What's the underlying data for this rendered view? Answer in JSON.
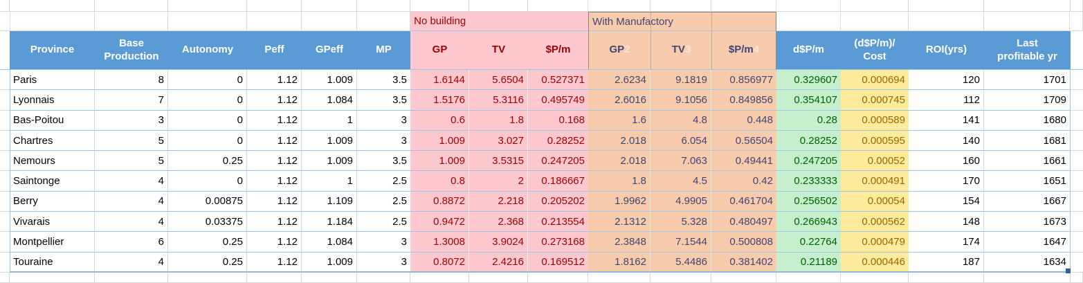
{
  "bands": {
    "no_building": "No building",
    "with_manufactory": "With Manufactory"
  },
  "header": {
    "province": "Province",
    "base_production": "Base\nProduction",
    "autonomy": "Autonomy",
    "peff": "Peff",
    "gpeff": "GPeff",
    "mp": "MP",
    "nb_gp": "GP",
    "nb_tv": "TV",
    "nb_ppm": "$P/m",
    "wm_gp": "GP",
    "wm_gp_ghost": "2",
    "wm_tv": "TV",
    "wm_tv_ghost": "3",
    "wm_ppm": "$P/m",
    "wm_ppm_ghost": "4",
    "dppm": "d$P/m",
    "dppm_cost": "(d$P/m)/\nCost",
    "roi": "ROI(yrs)",
    "last_yr": "Last\nprofitable yr"
  },
  "table": {
    "rows": [
      {
        "province": "Paris",
        "base_production": "8",
        "autonomy": "0",
        "peff": "1.12",
        "gpeff": "1.009",
        "mp": "3.5",
        "nb_gp": "1.6144",
        "nb_tv": "5.6504",
        "nb_ppm": "0.527371",
        "wm_gp": "2.6234",
        "wm_tv": "9.1819",
        "wm_ppm": "0.856977",
        "dppm": "0.329607",
        "dppm_cost": "0.000694",
        "roi": "120",
        "last_yr": "1701"
      },
      {
        "province": "Lyonnais",
        "base_production": "7",
        "autonomy": "0",
        "peff": "1.12",
        "gpeff": "1.084",
        "mp": "3.5",
        "nb_gp": "1.5176",
        "nb_tv": "5.3116",
        "nb_ppm": "0.495749",
        "wm_gp": "2.6016",
        "wm_tv": "9.1056",
        "wm_ppm": "0.849856",
        "dppm": "0.354107",
        "dppm_cost": "0.000745",
        "roi": "112",
        "last_yr": "1709"
      },
      {
        "province": "Bas-Poitou",
        "base_production": "3",
        "autonomy": "0",
        "peff": "1.12",
        "gpeff": "1",
        "mp": "3",
        "nb_gp": "0.6",
        "nb_tv": "1.8",
        "nb_ppm": "0.168",
        "wm_gp": "1.6",
        "wm_tv": "4.8",
        "wm_ppm": "0.448",
        "dppm": "0.28",
        "dppm_cost": "0.000589",
        "roi": "141",
        "last_yr": "1680"
      },
      {
        "province": "Chartres",
        "base_production": "5",
        "autonomy": "0",
        "peff": "1.12",
        "gpeff": "1.009",
        "mp": "3",
        "nb_gp": "1.009",
        "nb_tv": "3.027",
        "nb_ppm": "0.28252",
        "wm_gp": "2.018",
        "wm_tv": "6.054",
        "wm_ppm": "0.56504",
        "dppm": "0.28252",
        "dppm_cost": "0.000595",
        "roi": "140",
        "last_yr": "1681"
      },
      {
        "province": "Nemours",
        "base_production": "5",
        "autonomy": "0.25",
        "peff": "1.12",
        "gpeff": "1.009",
        "mp": "3.5",
        "nb_gp": "1.009",
        "nb_tv": "3.5315",
        "nb_ppm": "0.247205",
        "wm_gp": "2.018",
        "wm_tv": "7.063",
        "wm_ppm": "0.49441",
        "dppm": "0.247205",
        "dppm_cost": "0.00052",
        "roi": "160",
        "last_yr": "1661"
      },
      {
        "province": "Saintonge",
        "base_production": "4",
        "autonomy": "0",
        "peff": "1.12",
        "gpeff": "1",
        "mp": "2.5",
        "nb_gp": "0.8",
        "nb_tv": "2",
        "nb_ppm": "0.186667",
        "wm_gp": "1.8",
        "wm_tv": "4.5",
        "wm_ppm": "0.42",
        "dppm": "0.233333",
        "dppm_cost": "0.000491",
        "roi": "170",
        "last_yr": "1651"
      },
      {
        "province": "Berry",
        "base_production": "4",
        "autonomy": "0.00875",
        "peff": "1.12",
        "gpeff": "1.109",
        "mp": "2.5",
        "nb_gp": "0.8872",
        "nb_tv": "2.218",
        "nb_ppm": "0.205202",
        "wm_gp": "1.9962",
        "wm_tv": "4.9905",
        "wm_ppm": "0.461704",
        "dppm": "0.256502",
        "dppm_cost": "0.00054",
        "roi": "154",
        "last_yr": "1667"
      },
      {
        "province": "Vivarais",
        "base_production": "4",
        "autonomy": "0.03375",
        "peff": "1.12",
        "gpeff": "1.184",
        "mp": "2.5",
        "nb_gp": "0.9472",
        "nb_tv": "2.368",
        "nb_ppm": "0.213554",
        "wm_gp": "2.1312",
        "wm_tv": "5.328",
        "wm_ppm": "0.480497",
        "dppm": "0.266943",
        "dppm_cost": "0.000562",
        "roi": "148",
        "last_yr": "1673"
      },
      {
        "province": "Montpellier",
        "base_production": "6",
        "autonomy": "0.25",
        "peff": "1.12",
        "gpeff": "1.084",
        "mp": "3",
        "nb_gp": "1.3008",
        "nb_tv": "3.9024",
        "nb_ppm": "0.273168",
        "wm_gp": "2.3848",
        "wm_tv": "7.1544",
        "wm_ppm": "0.500808",
        "dppm": "0.22764",
        "dppm_cost": "0.000479",
        "roi": "174",
        "last_yr": "1647"
      },
      {
        "province": "Touraine",
        "base_production": "4",
        "autonomy": "0.25",
        "peff": "1.12",
        "gpeff": "1.009",
        "mp": "3",
        "nb_gp": "0.8072",
        "nb_tv": "2.4216",
        "nb_ppm": "0.169512",
        "wm_gp": "1.8162",
        "wm_tv": "5.4486",
        "wm_ppm": "0.381402",
        "dppm": "0.21189",
        "dppm_cost": "0.000446",
        "roi": "187",
        "last_yr": "1634"
      }
    ]
  },
  "colors": {
    "header_blue": "#5B9BD5",
    "header_text": "#FFFFFF",
    "bad_fill": "#FFC7CE",
    "bad_text": "#9C0006",
    "manufactory_fill": "#F8CBAD",
    "manufactory_text": "#3F4575",
    "good_fill": "#C6EFCE",
    "good_text": "#006100",
    "neutral_fill": "#FFEB9C",
    "neutral_text": "#9C6500",
    "row_border": "#9DC3E6",
    "gridline": "#D9D9D9",
    "band_border": "#808080",
    "fill_handle": "#35618F"
  }
}
